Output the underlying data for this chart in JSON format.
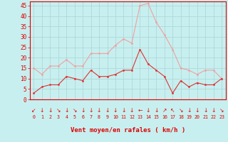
{
  "hours": [
    0,
    1,
    2,
    3,
    4,
    5,
    6,
    7,
    8,
    9,
    10,
    11,
    12,
    13,
    14,
    15,
    16,
    17,
    18,
    19,
    20,
    21,
    22,
    23
  ],
  "wind_avg": [
    3,
    6,
    7,
    7,
    11,
    10,
    9,
    14,
    11,
    11,
    12,
    14,
    14,
    24,
    17,
    14,
    11,
    3,
    9,
    6,
    8,
    7,
    7,
    10
  ],
  "wind_gust": [
    15,
    12,
    16,
    16,
    19,
    16,
    16,
    22,
    22,
    22,
    26,
    29,
    27,
    45,
    46,
    37,
    31,
    24,
    15,
    14,
    12,
    14,
    14,
    10
  ],
  "line_avg_color": "#dd3333",
  "line_gust_color": "#f0a0a0",
  "bg_color": "#c8efef",
  "grid_color": "#a8d4d4",
  "label_color": "#dd0000",
  "xlabel": "Vent moyen/en rafales ( km/h )",
  "ylim": [
    0,
    47
  ],
  "yticks": [
    0,
    5,
    10,
    15,
    20,
    25,
    30,
    35,
    40,
    45
  ],
  "arrow_chars": [
    "↙",
    "↓",
    "↓",
    "↘",
    "↓",
    "↘",
    "↓",
    "↓",
    "↓",
    "↓",
    "↓",
    "↓",
    "↓",
    "←",
    "↓",
    "↓",
    "↗",
    "↖",
    "↘",
    "↓",
    "↓",
    "↓",
    "↓",
    "↘"
  ]
}
